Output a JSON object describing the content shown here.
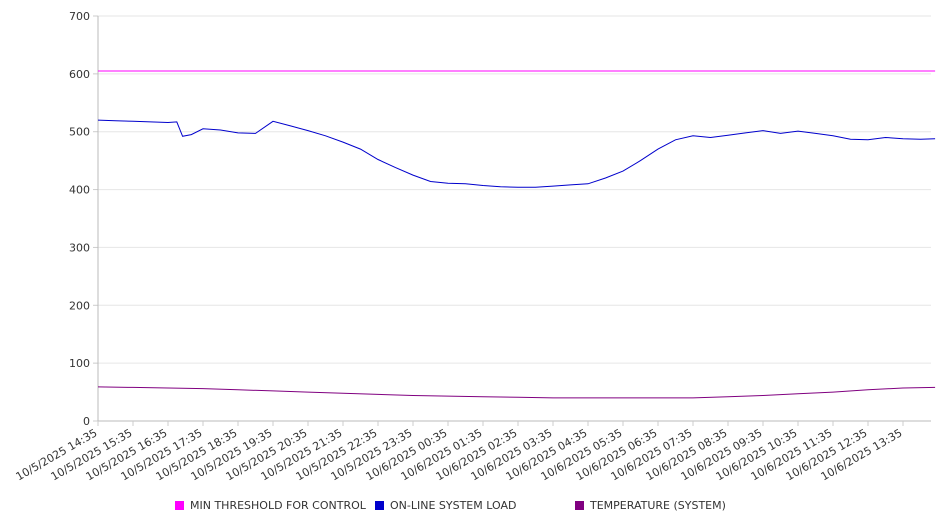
{
  "chart_data": {
    "type": "line",
    "title": "",
    "xlabel": "",
    "ylabel": "",
    "ylim": [
      0,
      700
    ],
    "yticks": [
      0,
      100,
      200,
      300,
      400,
      500,
      600,
      700
    ],
    "grid": "horizontal",
    "legend_position": "bottom",
    "x_tick_labels": [
      "10/5/2025 14:35",
      "10/5/2025 15:35",
      "10/5/2025 16:35",
      "10/5/2025 17:35",
      "10/5/2025 18:35",
      "10/5/2025 19:35",
      "10/5/2025 20:35",
      "10/5/2025 21:35",
      "10/5/2025 22:35",
      "10/5/2025 23:35",
      "10/6/2025 00:35",
      "10/6/2025 01:35",
      "10/6/2025 02:35",
      "10/6/2025 03:35",
      "10/6/2025 04:35",
      "10/6/2025 05:35",
      "10/6/2025 06:35",
      "10/6/2025 07:35",
      "10/6/2025 08:35",
      "10/6/2025 09:35",
      "10/6/2025 10:35",
      "10/6/2025 11:35",
      "10/6/2025 12:35",
      "10/6/2025 13:35"
    ],
    "series": [
      {
        "name": "MIN THRESHOLD FOR CONTROL",
        "color": "#ff00ff",
        "points": [
          [
            "10/5/2025 14:35",
            605
          ],
          [
            "10/6/2025 14:30",
            605
          ]
        ]
      },
      {
        "name": "ON-LINE SYSTEM LOAD",
        "color": "#0000cc",
        "points": [
          [
            "10/5/2025 14:35",
            520
          ],
          [
            "10/5/2025 15:05",
            519
          ],
          [
            "10/5/2025 15:35",
            518
          ],
          [
            "10/5/2025 16:05",
            517
          ],
          [
            "10/5/2025 16:35",
            516
          ],
          [
            "10/5/2025 16:50",
            517
          ],
          [
            "10/5/2025 17:00",
            492
          ],
          [
            "10/5/2025 17:15",
            495
          ],
          [
            "10/5/2025 17:35",
            505
          ],
          [
            "10/5/2025 18:05",
            503
          ],
          [
            "10/5/2025 18:35",
            498
          ],
          [
            "10/5/2025 19:05",
            497
          ],
          [
            "10/5/2025 19:35",
            518
          ],
          [
            "10/5/2025 20:05",
            510
          ],
          [
            "10/5/2025 20:35",
            502
          ],
          [
            "10/5/2025 21:05",
            493
          ],
          [
            "10/5/2025 21:35",
            482
          ],
          [
            "10/5/2025 22:05",
            470
          ],
          [
            "10/5/2025 22:35",
            452
          ],
          [
            "10/5/2025 23:05",
            438
          ],
          [
            "10/5/2025 23:35",
            425
          ],
          [
            "10/6/2025 00:05",
            414
          ],
          [
            "10/6/2025 00:35",
            411
          ],
          [
            "10/6/2025 01:05",
            410
          ],
          [
            "10/6/2025 01:35",
            407
          ],
          [
            "10/6/2025 02:05",
            405
          ],
          [
            "10/6/2025 02:35",
            404
          ],
          [
            "10/6/2025 03:05",
            404
          ],
          [
            "10/6/2025 03:35",
            406
          ],
          [
            "10/6/2025 04:05",
            408
          ],
          [
            "10/6/2025 04:35",
            410
          ],
          [
            "10/6/2025 05:05",
            420
          ],
          [
            "10/6/2025 05:35",
            432
          ],
          [
            "10/6/2025 06:05",
            450
          ],
          [
            "10/6/2025 06:35",
            470
          ],
          [
            "10/6/2025 07:05",
            486
          ],
          [
            "10/6/2025 07:35",
            493
          ],
          [
            "10/6/2025 08:05",
            490
          ],
          [
            "10/6/2025 08:35",
            494
          ],
          [
            "10/6/2025 09:05",
            498
          ],
          [
            "10/6/2025 09:35",
            502
          ],
          [
            "10/6/2025 10:05",
            497
          ],
          [
            "10/6/2025 10:35",
            501
          ],
          [
            "10/6/2025 11:05",
            497
          ],
          [
            "10/6/2025 11:35",
            493
          ],
          [
            "10/6/2025 12:05",
            487
          ],
          [
            "10/6/2025 12:35",
            486
          ],
          [
            "10/6/2025 13:05",
            490
          ],
          [
            "10/6/2025 13:35",
            488
          ],
          [
            "10/6/2025 14:05",
            487
          ],
          [
            "10/6/2025 14:30",
            488
          ]
        ]
      },
      {
        "name": "TEMPERATURE (SYSTEM)",
        "color": "#800080",
        "points": [
          [
            "10/5/2025 14:35",
            59
          ],
          [
            "10/5/2025 15:35",
            58
          ],
          [
            "10/5/2025 16:35",
            57
          ],
          [
            "10/5/2025 17:35",
            56
          ],
          [
            "10/5/2025 18:35",
            54
          ],
          [
            "10/5/2025 19:35",
            52
          ],
          [
            "10/5/2025 20:35",
            50
          ],
          [
            "10/5/2025 21:35",
            48
          ],
          [
            "10/5/2025 22:35",
            46
          ],
          [
            "10/5/2025 23:35",
            44
          ],
          [
            "10/6/2025 00:35",
            43
          ],
          [
            "10/6/2025 01:35",
            42
          ],
          [
            "10/6/2025 02:35",
            41
          ],
          [
            "10/6/2025 03:35",
            40
          ],
          [
            "10/6/2025 04:35",
            40
          ],
          [
            "10/6/2025 05:35",
            40
          ],
          [
            "10/6/2025 06:35",
            40
          ],
          [
            "10/6/2025 07:35",
            40
          ],
          [
            "10/6/2025 08:35",
            42
          ],
          [
            "10/6/2025 09:35",
            44
          ],
          [
            "10/6/2025 10:35",
            47
          ],
          [
            "10/6/2025 11:35",
            50
          ],
          [
            "10/6/2025 12:35",
            54
          ],
          [
            "10/6/2025 13:35",
            57
          ],
          [
            "10/6/2025 14:30",
            58
          ]
        ]
      }
    ]
  }
}
